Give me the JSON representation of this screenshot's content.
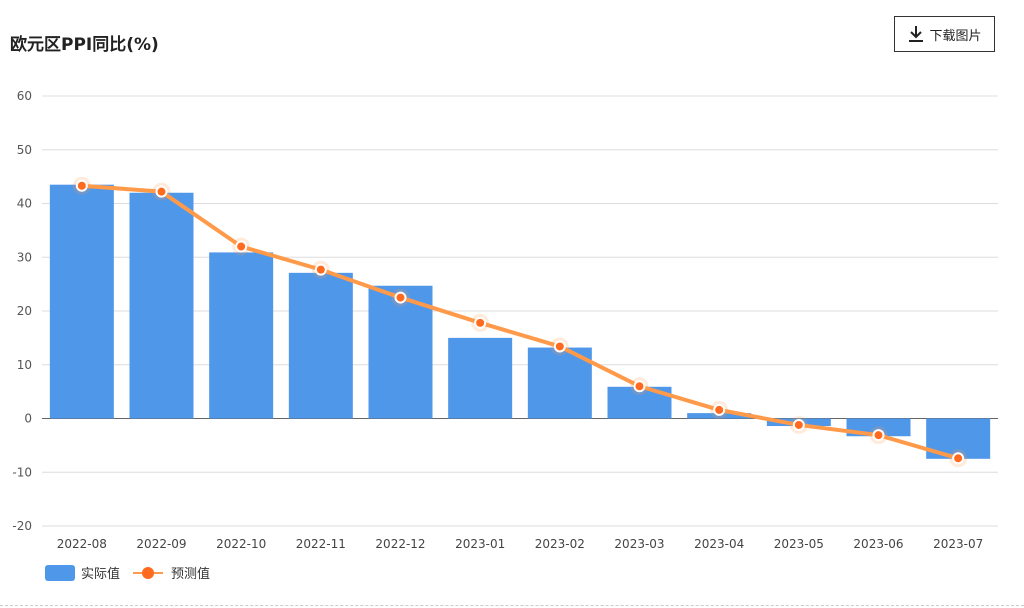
{
  "title": "欧元区PPI同比(%)",
  "download_button": {
    "label": "下载图片",
    "icon": "download-icon"
  },
  "colors": {
    "bar": "#4f97e8",
    "line": "#ff9a4a",
    "point": "#ff6a1f"
  },
  "chart_data": {
    "type": "bar",
    "title": "欧元区PPI同比(%)",
    "categories": [
      "2022-08",
      "2022-09",
      "2022-10",
      "2022-11",
      "2022-12",
      "2023-01",
      "2023-02",
      "2023-03",
      "2023-04",
      "2023-05",
      "2023-06",
      "2023-07"
    ],
    "series": [
      {
        "name": "实际值",
        "type": "bar",
        "values": [
          43.5,
          42.0,
          30.9,
          27.1,
          24.7,
          15.0,
          13.2,
          5.9,
          1.0,
          -1.4,
          -3.3,
          -7.5
        ]
      },
      {
        "name": "预测值",
        "type": "line",
        "values": [
          43.3,
          42.2,
          32.0,
          27.7,
          22.5,
          17.8,
          13.4,
          6.0,
          1.6,
          -1.2,
          -3.1,
          -7.4
        ]
      }
    ],
    "yticks": [
      60,
      50,
      40,
      30,
      20,
      10,
      0,
      -10,
      -20
    ],
    "ylim": [
      -20,
      60
    ],
    "grid": true,
    "legend": "bottom-left"
  }
}
